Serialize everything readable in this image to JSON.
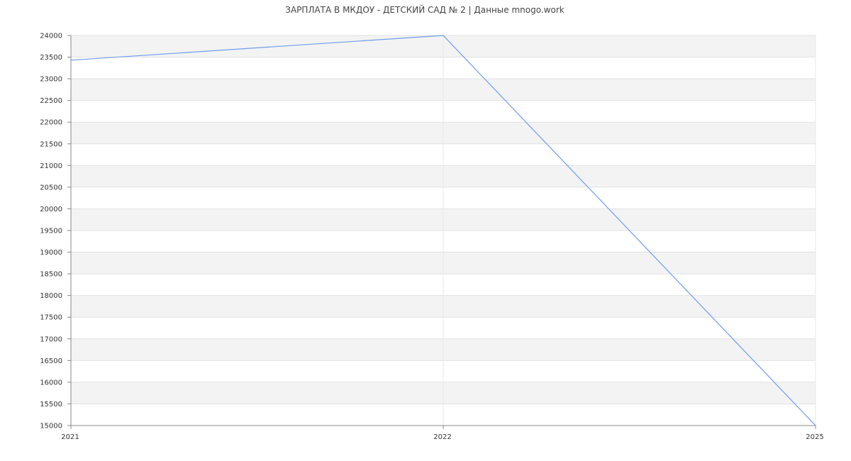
{
  "chart_data": {
    "type": "line",
    "title": "ЗАРПЛАТА В МКДОУ - ДЕТСКИЙ САД № 2 | Данные mnogo.work",
    "categories": [
      "2021",
      "2022",
      "2025"
    ],
    "series": [
      {
        "values": [
          23430,
          24000,
          15000
        ],
        "color": "#6d9eeb"
      }
    ],
    "ylim": [
      15000,
      24000
    ],
    "ytick_step": 500,
    "yticks": [
      "15000",
      "15500",
      "16000",
      "16500",
      "17000",
      "17500",
      "18000",
      "18500",
      "19000",
      "19500",
      "20000",
      "20500",
      "21000",
      "21500",
      "22000",
      "22500",
      "23000",
      "23500",
      "24000"
    ],
    "grid": true,
    "band_colors": [
      "#f3f3f3",
      "#ffffff"
    ],
    "xlabel": "",
    "ylabel": ""
  }
}
